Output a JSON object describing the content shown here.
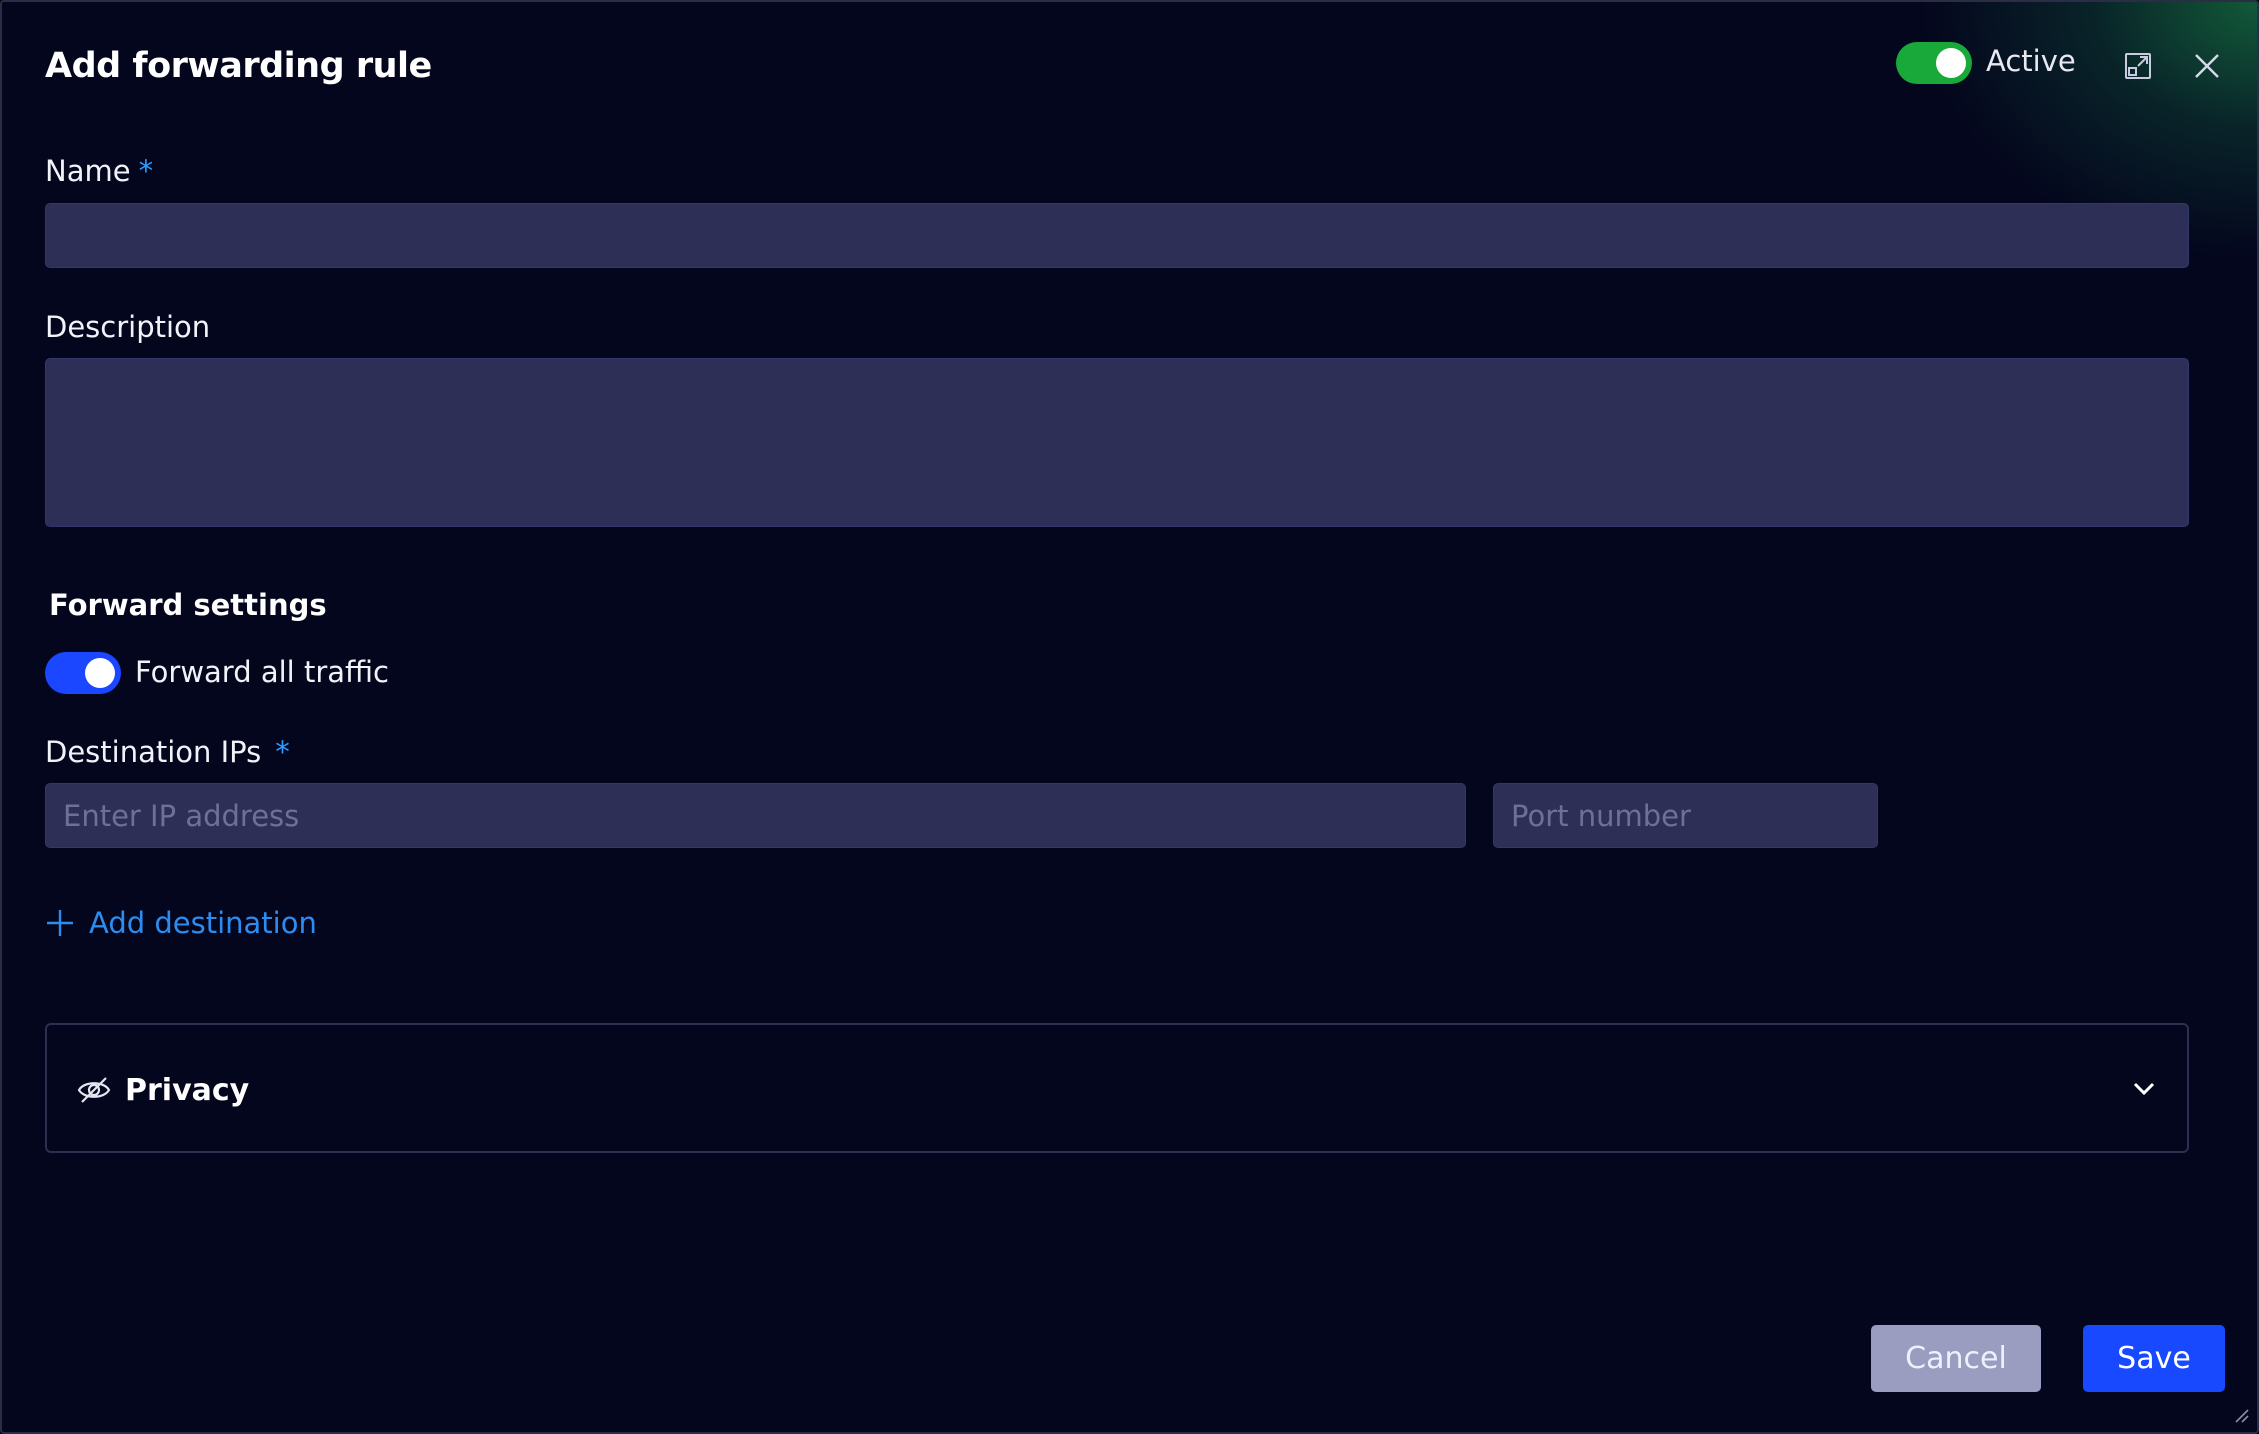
{
  "dialog": {
    "title": "Add forwarding rule",
    "active_label": "Active",
    "active_on": true
  },
  "name_field": {
    "label": "Name",
    "required_mark": "*",
    "value": ""
  },
  "description_field": {
    "label": "Description",
    "value": ""
  },
  "forward_settings": {
    "title": "Forward settings",
    "toggle_label": "Forward all traffic",
    "toggle_on": true
  },
  "destination": {
    "label": "Destination IPs",
    "required_mark": "*",
    "ip_placeholder": "Enter IP address",
    "port_placeholder": "Port number",
    "add_label": "Add destination"
  },
  "privacy": {
    "label": "Privacy"
  },
  "footer": {
    "cancel_label": "Cancel",
    "save_label": "Save"
  },
  "colors": {
    "background": "#04061d",
    "input_bg": "#2d2f56",
    "active_toggle": "#19a83a",
    "forward_toggle": "#1a47ff",
    "link": "#2d8cf0",
    "required_mark": "#2e9dff",
    "save_button": "#1849ff",
    "cancel_button": "#9a9cc0"
  },
  "icons": [
    "expand-icon",
    "close-icon",
    "plus-icon",
    "eye-off-icon",
    "chevron-down-icon",
    "resize-grip-icon"
  ]
}
